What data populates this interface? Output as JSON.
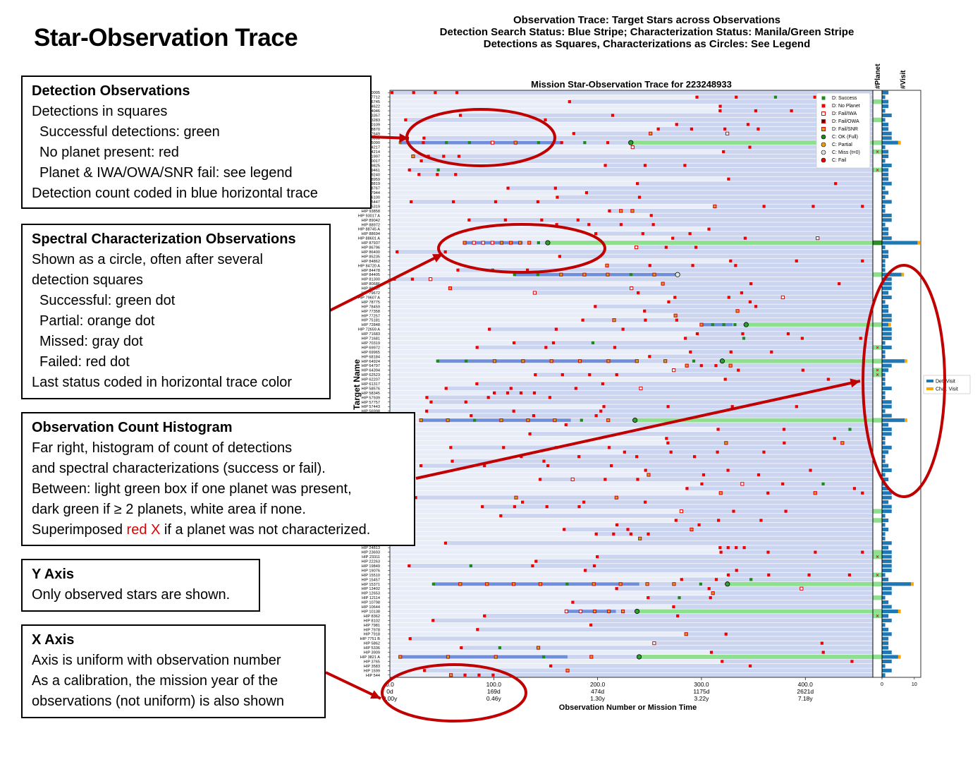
{
  "page": {
    "title": "Star-Observation Trace",
    "figure_title_lines": [
      "Observation Trace: Target Stars across Observations",
      "Detection Search Status: Blue Stripe; Characterization Status: Manila/Green Stripe",
      "Detections as Squares, Characterizations as Circles: See Legend"
    ]
  },
  "boxes": {
    "detection": {
      "heading": "Detection Observations",
      "lines": [
        {
          "text": "Detections in squares",
          "indent": false
        },
        {
          "text": "Successful detections: green",
          "indent": true
        },
        {
          "text": "No planet present: red",
          "indent": true
        },
        {
          "text": "Planet & IWA/OWA/SNR fail: see legend",
          "indent": true
        },
        {
          "text": "Detection count coded in blue horizontal trace",
          "indent": false
        }
      ]
    },
    "spectral": {
      "heading": "Spectral Characterization Observations",
      "lines": [
        {
          "text": "Shown as a circle, often after several",
          "indent": false
        },
        {
          "text": "detection squares",
          "indent": false
        },
        {
          "text": "Successful: green dot",
          "indent": true
        },
        {
          "text": "Partial: orange dot",
          "indent": true
        },
        {
          "text": "Missed: gray dot",
          "indent": true
        },
        {
          "text": "Failed: red dot",
          "indent": true
        },
        {
          "text": "Last status coded in horizontal trace color",
          "indent": false
        }
      ]
    },
    "histogram": {
      "heading": "Observation Count Histogram",
      "lines": [
        "Far right, histogram of count of detections",
        "and spectral characterizations (success or fail).",
        "Between: light green box if one planet was present,",
        "dark green if ≥ 2 planets, white area if none."
      ],
      "last_pre": "Superimposed ",
      "last_red": "red X",
      "last_post": " if a planet was not characterized."
    },
    "yaxis": {
      "heading": "Y Axis",
      "lines": [
        "Only observed stars are shown."
      ]
    },
    "xaxis": {
      "heading": "X Axis",
      "lines": [
        "Axis is uniform with observation number",
        "As a calibration, the mission year of the",
        "observations (not uniform) is also shown"
      ]
    }
  },
  "chart_data": {
    "type": "scatter",
    "title": "Mission Star-Observation Trace for 223248933",
    "xlabel": "Observation Number or Mission Time",
    "ylabel": "Target Name",
    "xlim": [
      0,
      465
    ],
    "x_ticks": [
      {
        "value": 0,
        "label": "0.0",
        "days": "0d",
        "years": "0.00y"
      },
      {
        "value": 100,
        "label": "100.0",
        "days": "169d",
        "years": "0.46y"
      },
      {
        "value": 200,
        "label": "200.0",
        "days": "474d",
        "years": "1.30y"
      },
      {
        "value": 300,
        "label": "300.0",
        "days": "1175d",
        "years": "3.22y"
      },
      {
        "value": 400,
        "label": "400.0",
        "days": "2621d",
        "years": "7.18y"
      }
    ],
    "planet_column_label": "#Planet",
    "visit_column_label": "#Visit",
    "visit_xlim": [
      0,
      12
    ],
    "visit_ticks": [
      0,
      10
    ],
    "stars": [
      "120005",
      "117712",
      "116745",
      "114622",
      "114046",
      "113357",
      "113283",
      "110109",
      "108870",
      "107649",
      "105858",
      "105090",
      "104217",
      "104214",
      "101997",
      "100017",
      "99825",
      "99461",
      "99240",
      "98959",
      "98819",
      "98767",
      "97944",
      "96100",
      "HIP 95447",
      "HIP 95319",
      "HIP 93858",
      "HIP 93017 A",
      "HIP 89042",
      "HIP 88972",
      "HIP 88745 A",
      "HIP 88694",
      "HIP 88601 A",
      "HIP 87937",
      "HIP 86796",
      "HIP 86400",
      "HIP 85235",
      "HIP 84862",
      "HIP 84720 A",
      "HIP 84478",
      "HIP 84405",
      "HIP 81300",
      "HIP 80686",
      "HIP 80337",
      "HIP 79672",
      "HIP 79607 A",
      "HIP 78775",
      "HIP 78459",
      "HIP 77358",
      "HIP 77257",
      "HIP 75181",
      "HIP 72848",
      "HIP 72659 A",
      "HIP 71683",
      "HIP 71681",
      "HIP 70319",
      "HIP 69972",
      "HIP 69965",
      "HIP 68184",
      "HIP 64924",
      "HIP 64797",
      "HIP 64394",
      "HIP 62523",
      "HIP 62207",
      "HIP 61317",
      "HIP 58576",
      "HIP 58345",
      "HIP 57939",
      "HIP 57757",
      "HIP 57443",
      "HIP 56998",
      "HIP 56452",
      "HIP 54035",
      "HIP 53721",
      "HIP 51459",
      "HIP 50954",
      "HIP 49908",
      "HIP 47592",
      "HIP 47080",
      "HIP 46580",
      "HIP 45333",
      "HIP 44897",
      "HIP 43587",
      "HIP 42438",
      "HIP 41926",
      "HIP 40843",
      "HIP 40693",
      "HIP 39157",
      "HIP 37349",
      "HIP 37279",
      "HIP 35136",
      "HIP 32984",
      "HIP 32439",
      "HIP 29568",
      "HIP 29271",
      "HIP 28103",
      "HIP 27913",
      "HIP 27072",
      "HIP 26779",
      "HIP 25278",
      "HIP 24813",
      "HIP 23693",
      "HIP 23311",
      "HIP 22263",
      "HIP 19849",
      "HIP 19076",
      "HIP 15510",
      "HIP 15457",
      "HIP 15371",
      "HIP 13402",
      "HIP 12653",
      "HIP 12114",
      "HIP 10798",
      "HIP 10644",
      "HIP 10138",
      "HIP 8362",
      "HIP 8102",
      "HIP 7981",
      "HIP 7978",
      "HIP 7918",
      "HIP 7751 B",
      "HIP 5862",
      "HIP 5336",
      "HIP 3909",
      "HIP 3821 A",
      "HIP 3765",
      "HIP 3583",
      "HIP 1599",
      "HIP 544"
    ],
    "legend": [
      {
        "label": "D: Success",
        "marker": "square",
        "color": "#1a8a1a"
      },
      {
        "label": "D: No Planet",
        "marker": "square",
        "color": "#ee0000"
      },
      {
        "label": "D: Fail/IWA",
        "marker": "square-open",
        "color": "#ee0000"
      },
      {
        "label": "D: Fail/OWA",
        "marker": "square-dark",
        "color": "#ee0000"
      },
      {
        "label": "D: Fail/SNR",
        "marker": "square-orange",
        "color": "#d4a020"
      },
      {
        "label": "C: OK (Full)",
        "marker": "circle",
        "color": "#1a8a1a"
      },
      {
        "label": "C: Partial",
        "marker": "circle",
        "color": "#f5a000"
      },
      {
        "label": "C: Miss (t=0)",
        "marker": "circle",
        "color": "#dddddd"
      },
      {
        "label": "C: Fail",
        "marker": "circle",
        "color": "#ee0000"
      }
    ],
    "histogram_legend": [
      {
        "label": "Det. Visit",
        "color": "#1f77b4"
      },
      {
        "label": "Char. Visit",
        "color": "#ffa500"
      }
    ],
    "colors": {
      "trace_bg": "#ccd5f0",
      "trace_light": "#e8edf8",
      "trace_blue": "#6f8fdc",
      "char_green": "#8ee08e",
      "detect_green": "#1a8a1a",
      "no_planet_red": "#ee0000",
      "annotation_red": "#c00000",
      "det_bar": "#1f77b4",
      "char_bar": "#ffa500"
    },
    "highlight_rows": [
      {
        "star": "105090",
        "x": [
          10,
          165,
          232
        ],
        "marks": [
          "fs",
          "d",
          "s",
          "s",
          "iwa",
          "snr",
          "s",
          "d",
          "s",
          "d",
          "cok"
        ],
        "trace": "green",
        "planets": 1,
        "visits": 5,
        "chars": 1
      },
      {
        "star": "HIP 87937",
        "x": [
          72,
          152
        ],
        "marks": [
          "snr",
          "iwa",
          "iwa",
          "iwa",
          "snr",
          "snr",
          "snr",
          "snr",
          "s",
          "cok"
        ],
        "trace": "green",
        "planets": 2,
        "visits": 11,
        "chars": 1
      },
      {
        "star": "HIP 84405",
        "x": [
          120,
          277
        ],
        "marks": [
          "s",
          "s",
          "snr",
          "snr",
          "snr",
          "s",
          "snr",
          "cmiss"
        ],
        "trace": "blue",
        "planets": 1,
        "visits": 6,
        "chars": 1
      },
      {
        "star": "HIP 72848",
        "x": [
          300,
          343
        ],
        "marks": [
          "snr",
          "s",
          "s",
          "s",
          "cok"
        ],
        "trace": "green",
        "planets": 1,
        "visits": 2,
        "chars": 1
      },
      {
        "star": "HIP 64924",
        "x": [
          46,
          320
        ],
        "marks": [
          "s",
          "s",
          "snr",
          "snr",
          "snr",
          "snr",
          "snr",
          "snr",
          "snr",
          "s",
          "cok"
        ],
        "trace": "green",
        "planets": 1,
        "visits": 7,
        "chars": 1
      },
      {
        "star": "HIP 54035",
        "x": [
          30,
          236
        ],
        "marks": [
          "snr",
          "snr",
          "s",
          "snr",
          "snr",
          "snr",
          "s",
          "snr",
          "cok"
        ],
        "trace": "green",
        "planets": 1,
        "visits": 7,
        "chars": 1
      },
      {
        "star": "HIP 15371",
        "x": [
          42,
          325
        ],
        "marks": [
          "s",
          "snr",
          "snr",
          "snr",
          "snr",
          "s",
          "snr",
          "snr",
          "snr",
          "snr",
          "s",
          "cok"
        ],
        "trace": "green",
        "planets": 1,
        "visits": 9,
        "chars": 1
      },
      {
        "star": "HIP 10138",
        "x": [
          170,
          238
        ],
        "marks": [
          "iwa",
          "iwa",
          "snr",
          "snr",
          "snr",
          "cok"
        ],
        "trace": "green",
        "planets": 1,
        "visits": 5,
        "chars": 1
      },
      {
        "star": "HIP 3821 A",
        "x": [
          10,
          240
        ],
        "marks": [
          "snr",
          "snr",
          "snr",
          "s",
          "snr",
          "cok"
        ],
        "trace": "green",
        "planets": 1,
        "visits": 5,
        "chars": 1
      }
    ]
  }
}
